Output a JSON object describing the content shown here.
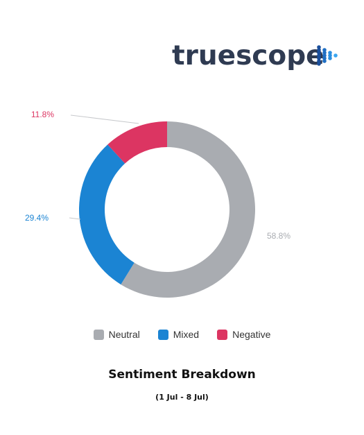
{
  "brand": {
    "name": "truescope"
  },
  "chart_data": {
    "type": "pie",
    "title": "Sentiment Breakdown",
    "subtitle": "(1 Jul - 8 Jul)",
    "donut": true,
    "legend_position": "bottom",
    "series": [
      {
        "name": "Neutral",
        "value": 58.8,
        "label": "58.8%",
        "color": "#a9acb1"
      },
      {
        "name": "Mixed",
        "value": 29.4,
        "label": "29.4%",
        "color": "#1b84d3"
      },
      {
        "name": "Negative",
        "value": 11.8,
        "label": "11.8%",
        "color": "#dc3562"
      }
    ]
  }
}
